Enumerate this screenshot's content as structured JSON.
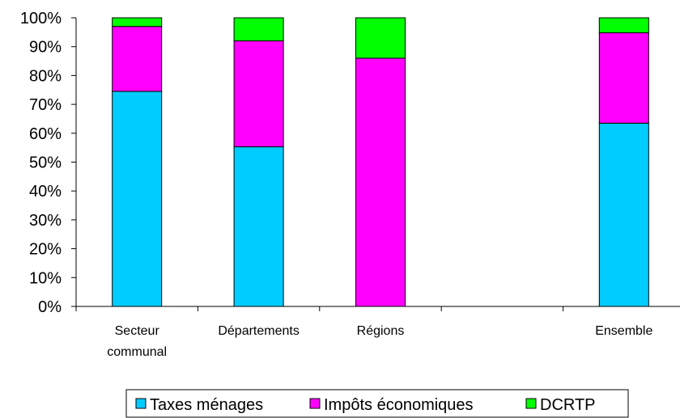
{
  "chart_data": {
    "type": "bar",
    "stacked": true,
    "percent": true,
    "categories": [
      [
        "Secteur",
        "communal"
      ],
      [
        "Départements"
      ],
      [
        "Régions"
      ],
      [
        ""
      ],
      [
        "Ensemble"
      ]
    ],
    "series": [
      {
        "name": "Taxes ménages",
        "color": "#00ccff",
        "values": [
          74.5,
          55.3,
          0,
          0,
          63.5
        ]
      },
      {
        "name": "Impôts économiques",
        "color": "#ff00ff",
        "values": [
          22.5,
          36.7,
          86,
          0,
          31.3
        ]
      },
      {
        "name": "DCRTP",
        "color": "#00ff00",
        "values": [
          3,
          8,
          14,
          0,
          5.2
        ]
      }
    ],
    "ylim": [
      0,
      100
    ],
    "yticks": [
      "0%",
      "10%",
      "20%",
      "30%",
      "40%",
      "50%",
      "60%",
      "70%",
      "80%",
      "90%",
      "100%"
    ],
    "grid": false,
    "legend": "bottom"
  }
}
